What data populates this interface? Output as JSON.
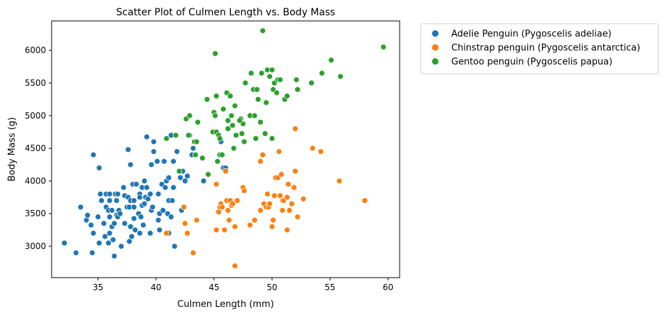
{
  "chart_data": {
    "type": "scatter",
    "title": "Scatter Plot of Culmen Length vs. Body Mass",
    "xlabel": "Culmen Length (mm)",
    "ylabel": "Body Mass (g)",
    "xlim": [
      31,
      61
    ],
    "ylim": [
      2520,
      6450
    ],
    "xticks": [
      35,
      40,
      45,
      50,
      55,
      60
    ],
    "yticks": [
      3000,
      3500,
      4000,
      4500,
      5000,
      5500,
      6000
    ],
    "grid": false,
    "legend_position": "outside-top-right",
    "series": [
      {
        "name": "Adelie Penguin (Pygoscelis adeliae)",
        "color": "#1f77b4",
        "points": [
          [
            32.1,
            3050
          ],
          [
            33.1,
            2900
          ],
          [
            33.5,
            3600
          ],
          [
            34.0,
            3400
          ],
          [
            34.1,
            3475
          ],
          [
            34.4,
            3325
          ],
          [
            34.5,
            2900
          ],
          [
            34.6,
            4400
          ],
          [
            34.6,
            3200
          ],
          [
            35.0,
            3450
          ],
          [
            35.1,
            3050
          ],
          [
            35.2,
            3800
          ],
          [
            35.1,
            4200
          ],
          [
            35.3,
            3700
          ],
          [
            35.5,
            3350
          ],
          [
            35.6,
            3150
          ],
          [
            35.7,
            3600
          ],
          [
            35.7,
            3800
          ],
          [
            35.9,
            3050
          ],
          [
            35.9,
            3550
          ],
          [
            36.0,
            3800
          ],
          [
            36.0,
            3700
          ],
          [
            36.0,
            3200
          ],
          [
            36.0,
            3450
          ],
          [
            36.2,
            3550
          ],
          [
            36.2,
            3300
          ],
          [
            36.3,
            3100
          ],
          [
            36.4,
            2850
          ],
          [
            36.4,
            3350
          ],
          [
            36.5,
            3800
          ],
          [
            36.6,
            3700
          ],
          [
            36.6,
            3475
          ],
          [
            36.7,
            3800
          ],
          [
            36.7,
            3450
          ],
          [
            36.8,
            3550
          ],
          [
            36.9,
            3500
          ],
          [
            37.0,
            3000
          ],
          [
            37.2,
            3900
          ],
          [
            37.3,
            3350
          ],
          [
            37.3,
            3775
          ],
          [
            37.5,
            3600
          ],
          [
            37.6,
            3750
          ],
          [
            37.6,
            4480
          ],
          [
            37.7,
            3600
          ],
          [
            37.7,
            3075
          ],
          [
            37.8,
            3700
          ],
          [
            37.8,
            3300
          ],
          [
            37.8,
            4250
          ],
          [
            37.9,
            3150
          ],
          [
            38.0,
            3950
          ],
          [
            38.1,
            3600
          ],
          [
            38.1,
            3700
          ],
          [
            38.1,
            3425
          ],
          [
            38.2,
            3250
          ],
          [
            38.3,
            3950
          ],
          [
            38.5,
            3500
          ],
          [
            38.6,
            3800
          ],
          [
            38.6,
            3200
          ],
          [
            38.7,
            3450
          ],
          [
            38.8,
            3625
          ],
          [
            38.8,
            3900
          ],
          [
            38.9,
            3325
          ],
          [
            39.0,
            3650
          ],
          [
            39.1,
            3750
          ],
          [
            39.2,
            3900
          ],
          [
            39.2,
            4675
          ],
          [
            39.3,
            3725
          ],
          [
            39.5,
            3800
          ],
          [
            39.5,
            3200
          ],
          [
            39.6,
            3550
          ],
          [
            39.6,
            4250
          ],
          [
            39.7,
            3600
          ],
          [
            39.8,
            4450
          ],
          [
            39.8,
            4600
          ],
          [
            40.1,
            4300
          ],
          [
            40.2,
            3400
          ],
          [
            40.2,
            3800
          ],
          [
            40.3,
            3250
          ],
          [
            40.3,
            3500
          ],
          [
            40.5,
            3950
          ],
          [
            40.6,
            3550
          ],
          [
            40.7,
            4300
          ],
          [
            40.8,
            3900
          ],
          [
            40.9,
            4000
          ],
          [
            41.0,
            3500
          ],
          [
            41.1,
            4050
          ],
          [
            41.1,
            3700
          ],
          [
            41.1,
            3200
          ],
          [
            41.3,
            3450
          ],
          [
            41.3,
            4700
          ],
          [
            41.4,
            3700
          ],
          [
            41.5,
            3900
          ],
          [
            41.5,
            4300
          ],
          [
            41.6,
            3000
          ],
          [
            41.8,
            4450
          ],
          [
            42.0,
            4150
          ],
          [
            42.1,
            4050
          ],
          [
            42.2,
            3550
          ],
          [
            42.3,
            4150
          ],
          [
            42.5,
            4000
          ],
          [
            42.7,
            4075
          ],
          [
            42.9,
            4700
          ],
          [
            43.1,
            4400
          ],
          [
            43.2,
            4500
          ],
          [
            44.1,
            4000
          ],
          [
            45.6,
            4600
          ],
          [
            45.8,
            4200
          ],
          [
            46.0,
            4200
          ],
          [
            38.6,
            3750
          ],
          [
            39.0,
            4000
          ]
        ]
      },
      {
        "name": "Chinstrap penguin (Pygoscelis antarctica)",
        "color": "#ff7f0e",
        "points": [
          [
            40.9,
            3200
          ],
          [
            42.4,
            3600
          ],
          [
            42.5,
            3350
          ],
          [
            42.7,
            3200
          ],
          [
            43.2,
            2900
          ],
          [
            43.5,
            3400
          ],
          [
            45.2,
            3950
          ],
          [
            45.2,
            3250
          ],
          [
            45.4,
            3525
          ],
          [
            45.5,
            3600
          ],
          [
            45.6,
            3650
          ],
          [
            45.7,
            3600
          ],
          [
            45.9,
            3250
          ],
          [
            46.0,
            4150
          ],
          [
            46.1,
            3700
          ],
          [
            46.2,
            3550
          ],
          [
            46.3,
            3400
          ],
          [
            46.4,
            3700
          ],
          [
            46.5,
            3625
          ],
          [
            46.6,
            3650
          ],
          [
            46.8,
            3300
          ],
          [
            46.8,
            2700
          ],
          [
            47.0,
            3700
          ],
          [
            47.5,
            3900
          ],
          [
            47.6,
            3850
          ],
          [
            48.1,
            3325
          ],
          [
            48.5,
            3400
          ],
          [
            49.0,
            3550
          ],
          [
            49.0,
            4300
          ],
          [
            49.2,
            4400
          ],
          [
            49.3,
            3650
          ],
          [
            49.5,
            3600
          ],
          [
            49.6,
            3800
          ],
          [
            49.7,
            3600
          ],
          [
            49.8,
            3650
          ],
          [
            50.0,
            3300
          ],
          [
            50.1,
            3400
          ],
          [
            50.2,
            3775
          ],
          [
            50.3,
            4050
          ],
          [
            50.5,
            4050
          ],
          [
            50.6,
            4450
          ],
          [
            50.7,
            3775
          ],
          [
            50.8,
            4100
          ],
          [
            50.9,
            3550
          ],
          [
            50.9,
            3700
          ],
          [
            51.0,
            3700
          ],
          [
            51.3,
            3250
          ],
          [
            51.3,
            3750
          ],
          [
            51.4,
            3950
          ],
          [
            51.5,
            3550
          ],
          [
            51.7,
            3650
          ],
          [
            51.9,
            3900
          ],
          [
            52.0,
            4150
          ],
          [
            52.0,
            4800
          ],
          [
            52.2,
            3450
          ],
          [
            52.7,
            3725
          ],
          [
            53.5,
            4500
          ],
          [
            54.2,
            4450
          ],
          [
            55.8,
            4000
          ],
          [
            58.0,
            3700
          ]
        ]
      },
      {
        "name": "Gentoo penguin (Pygoscelis papua)",
        "color": "#2ca02c",
        "points": [
          [
            40.9,
            4650
          ],
          [
            41.7,
            4700
          ],
          [
            42.0,
            4150
          ],
          [
            42.6,
            4950
          ],
          [
            42.8,
            4700
          ],
          [
            42.9,
            5000
          ],
          [
            43.3,
            4600
          ],
          [
            43.4,
            4400
          ],
          [
            43.5,
            4600
          ],
          [
            43.6,
            4900
          ],
          [
            44.0,
            4350
          ],
          [
            44.4,
            5250
          ],
          [
            44.5,
            4100
          ],
          [
            44.9,
            4750
          ],
          [
            45.0,
            5050
          ],
          [
            45.1,
            5000
          ],
          [
            45.1,
            5950
          ],
          [
            45.2,
            4750
          ],
          [
            45.2,
            5300
          ],
          [
            45.3,
            4300
          ],
          [
            45.4,
            4700
          ],
          [
            45.5,
            4650
          ],
          [
            45.5,
            4400
          ],
          [
            45.7,
            4400
          ],
          [
            45.8,
            5100
          ],
          [
            46.1,
            5350
          ],
          [
            46.2,
            4925
          ],
          [
            46.2,
            4800
          ],
          [
            46.4,
            5300
          ],
          [
            46.5,
            5000
          ],
          [
            46.6,
            4850
          ],
          [
            46.8,
            5150
          ],
          [
            46.9,
            4700
          ],
          [
            47.3,
            4950
          ],
          [
            47.5,
            4875
          ],
          [
            47.6,
            4600
          ],
          [
            47.7,
            5500
          ],
          [
            48.1,
            5000
          ],
          [
            48.2,
            5650
          ],
          [
            48.4,
            5400
          ],
          [
            48.5,
            5000
          ],
          [
            48.7,
            5400
          ],
          [
            48.8,
            5250
          ],
          [
            49.1,
            5650
          ],
          [
            49.2,
            6300
          ],
          [
            49.4,
            4725
          ],
          [
            49.5,
            5200
          ],
          [
            49.6,
            5700
          ],
          [
            49.8,
            5600
          ],
          [
            50.0,
            5700
          ],
          [
            50.1,
            5400
          ],
          [
            50.2,
            5500
          ],
          [
            50.4,
            5350
          ],
          [
            50.5,
            5550
          ],
          [
            50.7,
            5550
          ],
          [
            51.1,
            5250
          ],
          [
            51.3,
            5300
          ],
          [
            52.1,
            5550
          ],
          [
            52.2,
            5400
          ],
          [
            53.4,
            5500
          ],
          [
            54.3,
            5650
          ],
          [
            55.1,
            5850
          ],
          [
            55.9,
            5600
          ],
          [
            59.6,
            6050
          ],
          [
            47.4,
            4725
          ],
          [
            47.2,
            4925
          ],
          [
            46.7,
            4500
          ],
          [
            48.6,
            4650
          ],
          [
            49.0,
            4900
          ],
          [
            50.0,
            4650
          ]
        ]
      }
    ]
  }
}
